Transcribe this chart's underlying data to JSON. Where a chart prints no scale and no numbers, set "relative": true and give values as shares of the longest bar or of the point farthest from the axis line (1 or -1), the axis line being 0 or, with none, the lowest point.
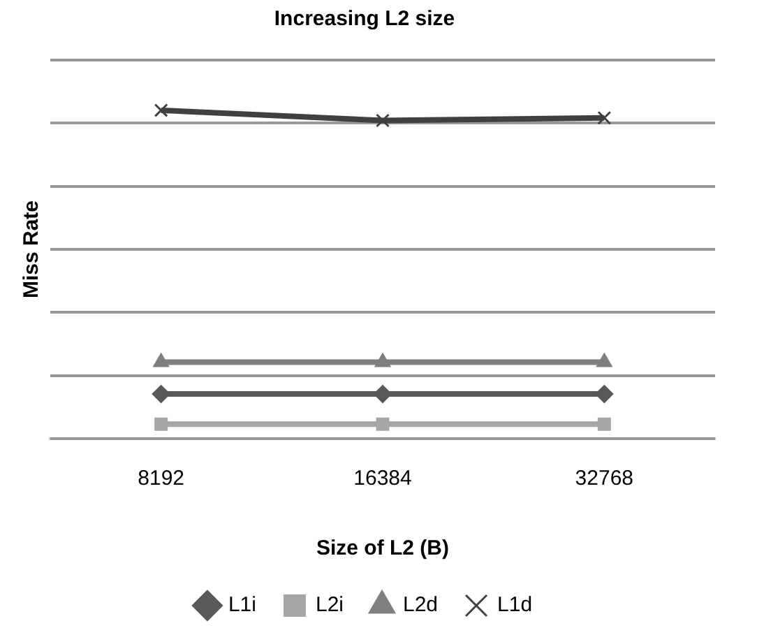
{
  "chart_data": {
    "type": "line",
    "title": "Increasing L2 size",
    "xlabel": "Size of L2 (B)",
    "ylabel": "Miss Rate",
    "categories": [
      "8192",
      "16384",
      "32768"
    ],
    "relative": true,
    "grid": "y",
    "legend": "bottom",
    "tick_labels": "x",
    "series": [
      {
        "name": "L1i",
        "color": "#595959",
        "marker": "diamond",
        "values": [
          0.136,
          0.136,
          0.136
        ]
      },
      {
        "name": "L2i",
        "color": "#a6a6a6",
        "marker": "square",
        "values": [
          0.044,
          0.044,
          0.044
        ]
      },
      {
        "name": "L2d",
        "color": "#7f7f7f",
        "marker": "triangle",
        "values": [
          0.233,
          0.233,
          0.233
        ]
      },
      {
        "name": "L1d",
        "color": "#404040",
        "marker": "cross",
        "values": [
          1,
          0.969,
          0.977
        ]
      }
    ]
  }
}
